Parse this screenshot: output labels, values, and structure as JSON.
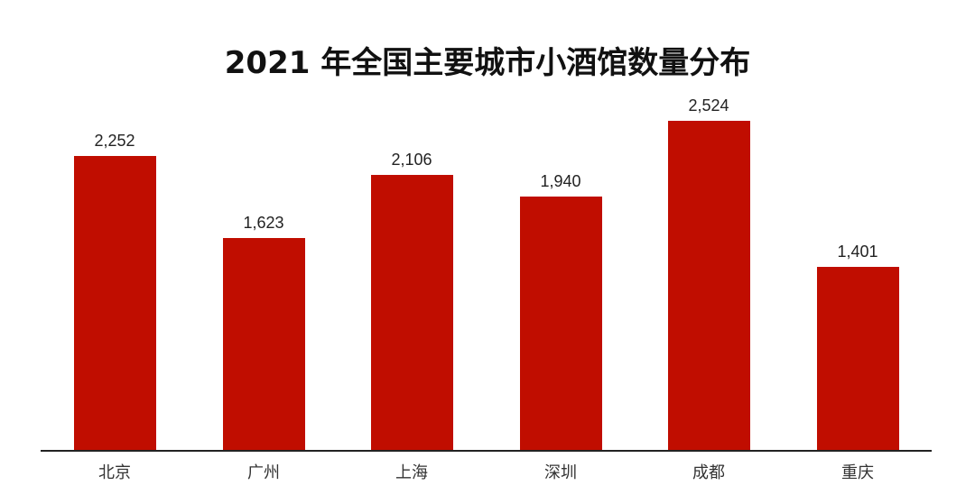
{
  "chart_data": {
    "type": "bar",
    "title": "2021 年全国主要城市小酒馆数量分布",
    "categories": [
      "北京",
      "广州",
      "上海",
      "深圳",
      "成都",
      "重庆"
    ],
    "values": [
      2252,
      1623,
      2106,
      1940,
      2524,
      1401
    ],
    "value_labels": [
      "2,252",
      "1,623",
      "2,106",
      "1,940",
      "2,524",
      "1,401"
    ],
    "xlabel": "",
    "ylabel": "",
    "ylim": [
      0,
      2600
    ],
    "grid": false,
    "legend": null,
    "bar_color": "#c00d00"
  }
}
